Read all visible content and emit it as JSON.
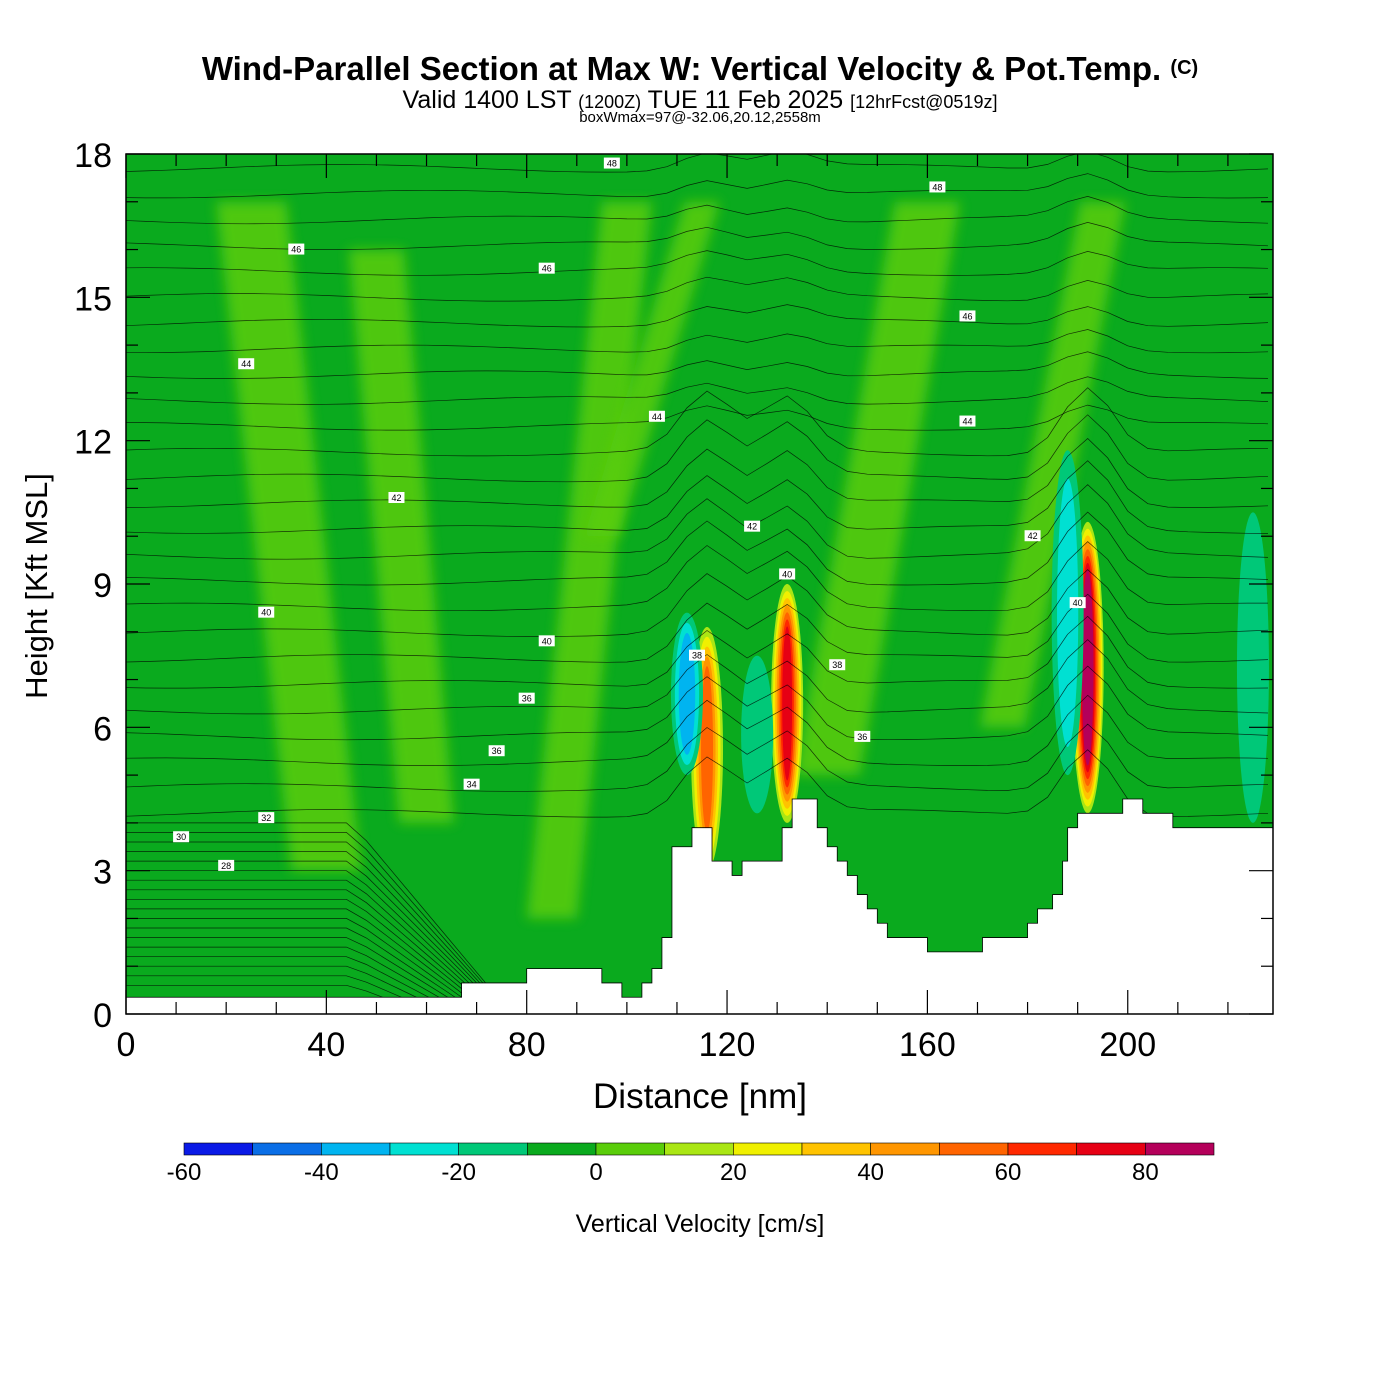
{
  "header": {
    "title": "Wind-Parallel Section at Max W: Vertical Velocity & Pot.Temp.",
    "copyright": "(C)",
    "valid_main": "Valid 1400 LST",
    "valid_utc": "(1200Z)",
    "valid_date": "TUE 11 Feb 2025",
    "forecast": "[12hrFcst@0519z]",
    "box_info": "boxWmax=97@-32.06,20.12,2558m"
  },
  "colors": {
    "bins": [
      "#0a1ae6",
      "#0a6ee6",
      "#00b4f0",
      "#00e0d2",
      "#00c878",
      "#0aaa1e",
      "#5acd0a",
      "#aae614",
      "#f0f000",
      "#ffc300",
      "#ff9600",
      "#ff6400",
      "#ff2800",
      "#e60014",
      "#b4005a"
    ],
    "field_base": "#0aaa1e",
    "terrain": "#ffffff"
  },
  "chart_data": {
    "type": "heatmap",
    "xlabel": "Distance [nm]",
    "ylabel": "Height [Kft MSL]",
    "xlim": [
      0,
      229
    ],
    "ylim": [
      0,
      18
    ],
    "x_ticks": [
      0,
      40,
      80,
      120,
      160,
      200
    ],
    "y_ticks": [
      0,
      3,
      6,
      9,
      12,
      15,
      18
    ],
    "colorbar": {
      "label": "Vertical Velocity [cm/s]",
      "min": -60,
      "max": 90,
      "step": 10,
      "tick_values": [
        -60,
        -40,
        -20,
        0,
        20,
        40,
        60,
        80
      ]
    },
    "terrain_profile": [
      [
        0,
        0.35
      ],
      [
        25,
        0.35
      ],
      [
        50,
        0.35
      ],
      [
        67,
        0.35
      ],
      [
        67,
        0.65
      ],
      [
        80,
        0.65
      ],
      [
        80,
        0.95
      ],
      [
        95,
        0.95
      ],
      [
        95,
        0.65
      ],
      [
        99,
        0.65
      ],
      [
        99,
        0.35
      ],
      [
        103,
        0.35
      ],
      [
        103,
        0.65
      ],
      [
        105,
        0.65
      ],
      [
        105,
        0.95
      ],
      [
        107,
        0.95
      ],
      [
        107,
        1.6
      ],
      [
        109,
        1.6
      ],
      [
        109,
        3.5
      ],
      [
        113,
        3.5
      ],
      [
        113,
        3.9
      ],
      [
        117,
        3.9
      ],
      [
        117,
        3.2
      ],
      [
        121,
        3.2
      ],
      [
        121,
        2.9
      ],
      [
        123,
        2.9
      ],
      [
        123,
        3.2
      ],
      [
        131,
        3.2
      ],
      [
        131,
        3.9
      ],
      [
        133,
        3.9
      ],
      [
        133,
        4.5
      ],
      [
        138,
        4.5
      ],
      [
        138,
        3.9
      ],
      [
        140,
        3.9
      ],
      [
        140,
        3.5
      ],
      [
        142,
        3.5
      ],
      [
        142,
        3.2
      ],
      [
        144,
        3.2
      ],
      [
        144,
        2.9
      ],
      [
        146,
        2.9
      ],
      [
        146,
        2.5
      ],
      [
        148,
        2.5
      ],
      [
        148,
        2.2
      ],
      [
        150,
        2.2
      ],
      [
        150,
        1.9
      ],
      [
        152,
        1.9
      ],
      [
        152,
        1.6
      ],
      [
        160,
        1.6
      ],
      [
        160,
        1.3
      ],
      [
        171,
        1.3
      ],
      [
        171,
        1.6
      ],
      [
        180,
        1.6
      ],
      [
        180,
        1.9
      ],
      [
        182,
        1.9
      ],
      [
        182,
        2.2
      ],
      [
        185,
        2.2
      ],
      [
        185,
        2.5
      ],
      [
        187,
        2.5
      ],
      [
        187,
        3.2
      ],
      [
        188,
        3.2
      ],
      [
        188,
        3.9
      ],
      [
        190,
        3.9
      ],
      [
        190,
        4.2
      ],
      [
        199,
        4.2
      ],
      [
        199,
        4.5
      ],
      [
        203,
        4.5
      ],
      [
        203,
        4.2
      ],
      [
        209,
        4.2
      ],
      [
        209,
        3.9
      ],
      [
        229,
        3.9
      ]
    ],
    "features": [
      {
        "kind": "updraft",
        "x": 116,
        "zbot": 3.0,
        "ztop": 8.1,
        "peak_w": 60
      },
      {
        "kind": "downdraft",
        "x": 112,
        "zbot": 5.0,
        "ztop": 8.4,
        "peak_w": -40
      },
      {
        "kind": "updraft",
        "x": 132,
        "zbot": 4.0,
        "ztop": 9.0,
        "peak_w": 75
      },
      {
        "kind": "downdraft",
        "x": 126,
        "zbot": 4.2,
        "ztop": 7.5,
        "peak_w": -20
      },
      {
        "kind": "updraft",
        "x": 192,
        "zbot": 4.2,
        "ztop": 10.3,
        "peak_w": 97
      },
      {
        "kind": "downdraft",
        "x": 188,
        "zbot": 5.0,
        "ztop": 11.8,
        "peak_w": -30
      },
      {
        "kind": "downdraft",
        "x": 225,
        "zbot": 4.0,
        "ztop": 10.5,
        "peak_w": -20
      }
    ],
    "theta_labels": [
      {
        "text": "48",
        "x": 97,
        "z": 17.8
      },
      {
        "text": "48",
        "x": 162,
        "z": 17.3
      },
      {
        "text": "46",
        "x": 34,
        "z": 16.0
      },
      {
        "text": "46",
        "x": 84,
        "z": 15.6
      },
      {
        "text": "46",
        "x": 168,
        "z": 14.6
      },
      {
        "text": "44",
        "x": 24,
        "z": 13.6
      },
      {
        "text": "44",
        "x": 106,
        "z": 12.5
      },
      {
        "text": "44",
        "x": 168,
        "z": 12.4
      },
      {
        "text": "42",
        "x": 54,
        "z": 10.8
      },
      {
        "text": "42",
        "x": 125,
        "z": 10.2
      },
      {
        "text": "42",
        "x": 181,
        "z": 10.0
      },
      {
        "text": "40",
        "x": 28,
        "z": 8.4
      },
      {
        "text": "40",
        "x": 84,
        "z": 7.8
      },
      {
        "text": "40",
        "x": 132,
        "z": 9.2
      },
      {
        "text": "40",
        "x": 190,
        "z": 8.6
      },
      {
        "text": "38",
        "x": 114,
        "z": 7.5
      },
      {
        "text": "38",
        "x": 142,
        "z": 7.3
      },
      {
        "text": "36",
        "x": 80,
        "z": 6.6
      },
      {
        "text": "36",
        "x": 147,
        "z": 5.8
      },
      {
        "text": "36",
        "x": 74,
        "z": 5.5
      },
      {
        "text": "34",
        "x": 69,
        "z": 4.8
      },
      {
        "text": "32",
        "x": 28,
        "z": 4.1
      },
      {
        "text": "30",
        "x": 11,
        "z": 3.7
      },
      {
        "text": "28",
        "x": 20,
        "z": 3.1
      }
    ]
  }
}
